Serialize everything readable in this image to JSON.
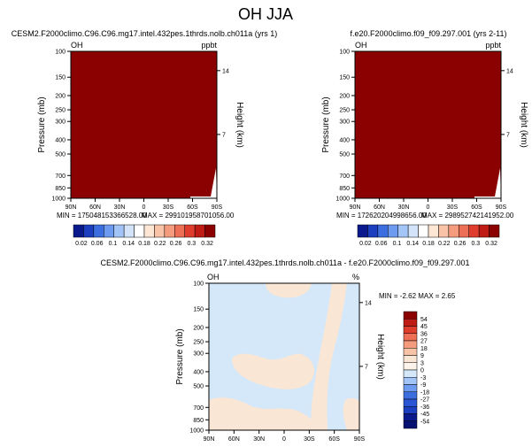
{
  "title": "OH JJA",
  "chart_data": [
    {
      "type": "heatmap",
      "title": "CESM2.F2000climo.C96.C96.mg17.intel.432pes.1thrds.nolb.ch011a (yrs 1)",
      "left_label": "OH",
      "right_label": "ppbt",
      "ylabel": "Pressure (mb)",
      "ylabel_right": "Height (km)",
      "x_ticks": [
        "90N",
        "60N",
        "30N",
        "0",
        "30S",
        "60S",
        "90S"
      ],
      "y_ticks": [
        "100",
        "150",
        "200",
        "250",
        "300",
        "400",
        "500",
        "700",
        "850",
        "1000"
      ],
      "height_ticks": [
        "14",
        "7"
      ],
      "min_label": "MIN = 175048153366528.00",
      "max_label": "MAX = 299101958701056.00",
      "fill_color": "#8b0000"
    },
    {
      "type": "heatmap",
      "title": "f.e20.F2000climo.f09_f09.297.001 (yrs 2-11)",
      "left_label": "OH",
      "right_label": "ppbt",
      "ylabel": "Pressure (mb)",
      "ylabel_right": "Height (km)",
      "x_ticks": [
        "90N",
        "60N",
        "30N",
        "0",
        "30S",
        "60S",
        "90S"
      ],
      "y_ticks": [
        "100",
        "150",
        "200",
        "250",
        "300",
        "400",
        "500",
        "700",
        "850",
        "1000"
      ],
      "height_ticks": [
        "14",
        "7"
      ],
      "min_label": "MIN = 172620204998656.00",
      "max_label": "MAX = 298952742141952.00",
      "fill_color": "#8b0000"
    },
    {
      "type": "heatmap",
      "title": "CESM2.F2000climo.C96.C96.mg17.intel.432pes.1thrds.nolb.ch011a - f.e20.F2000climo.f09_f09.297.001",
      "left_label": "OH",
      "right_label": "%",
      "ylabel": "Pressure (mb)",
      "ylabel_right": "Height (km)",
      "x_ticks": [
        "90N",
        "60N",
        "30N",
        "0",
        "30S",
        "60S",
        "90S"
      ],
      "y_ticks": [
        "100",
        "150",
        "200",
        "250",
        "300",
        "400",
        "500",
        "700",
        "850",
        "1000"
      ],
      "height_ticks": [
        "14",
        "7"
      ],
      "min_max_label": "MIN = -2.62   MAX =  2.65",
      "base_color": "#d4e8fa",
      "positive_color": "#fae6d4"
    }
  ],
  "colorbar_top": {
    "labels": [
      "0.02",
      "0.06",
      "0.1",
      "0.14",
      "0.18",
      "0.22",
      "0.26",
      "0.3",
      "0.32"
    ],
    "colors": [
      "#0a1a8c",
      "#1c3fbf",
      "#3d6ee0",
      "#6d9bf0",
      "#a3c4f7",
      "#d3e4fa",
      "#ffffff",
      "#fde6d3",
      "#f8c3a6",
      "#f49c7d",
      "#ed6f55",
      "#de3d2e",
      "#bf1c16",
      "#8b0000"
    ]
  },
  "colorbar_diff": {
    "labels": [
      "54",
      "45",
      "36",
      "27",
      "18",
      "9",
      "3",
      "0",
      "-3",
      "-9",
      "-18",
      "-27",
      "-36",
      "-45",
      "-54"
    ],
    "colors": [
      "#8b0000",
      "#bf1c16",
      "#de3d2e",
      "#ed6f55",
      "#f49c7d",
      "#f8c3a6",
      "#fae6d4",
      "#fdf3ea",
      "#d4e8fa",
      "#a3c4f7",
      "#6d9bf0",
      "#3d6ee0",
      "#2a55d4",
      "#1c3fbf",
      "#0a1a8c",
      "#061070"
    ]
  }
}
